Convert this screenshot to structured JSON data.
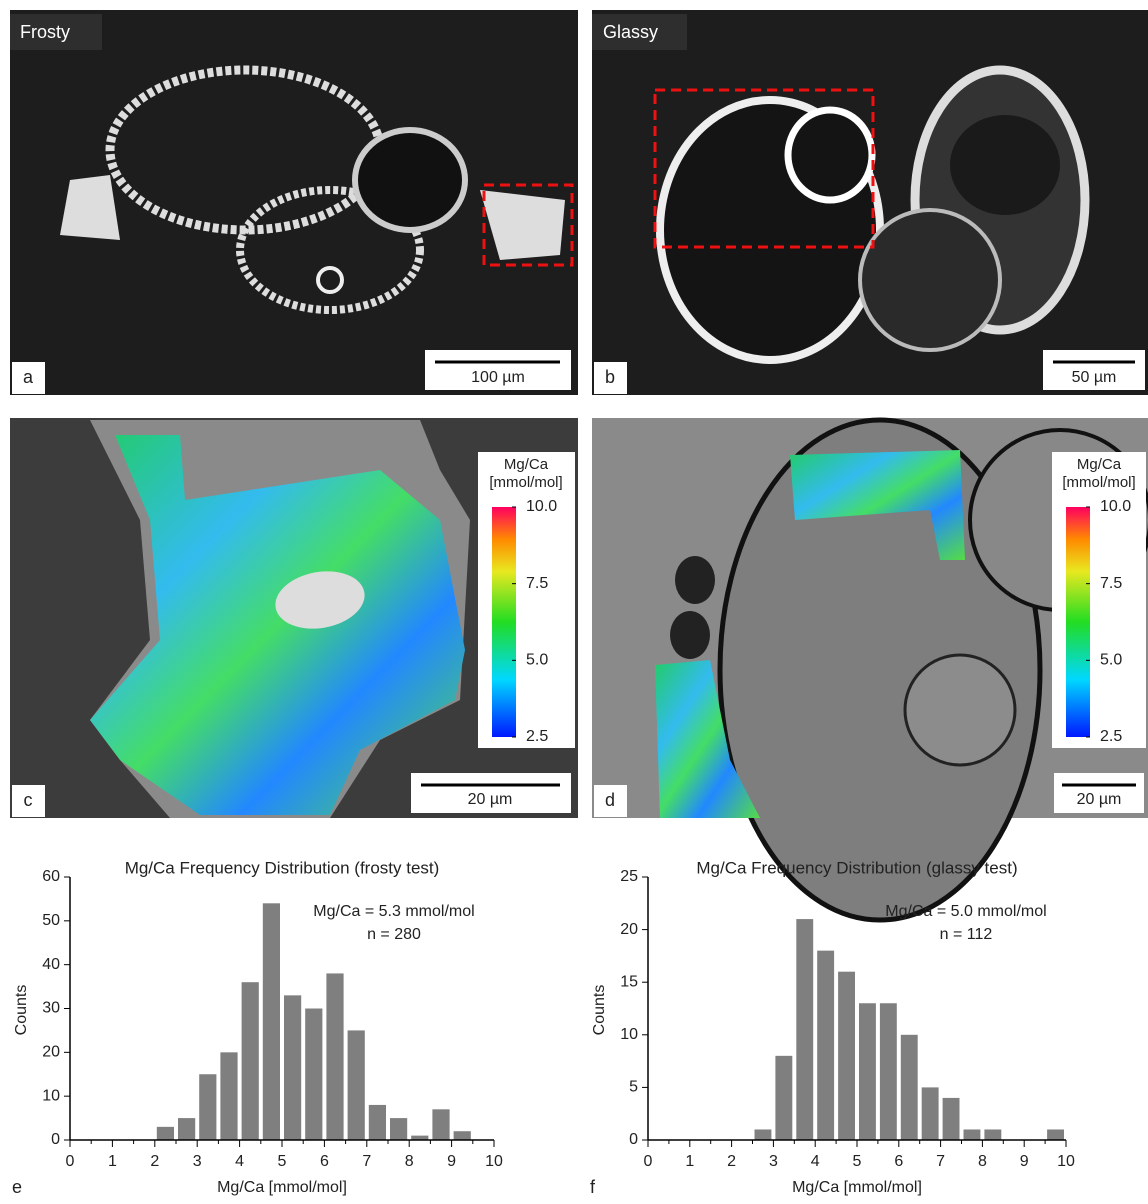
{
  "panels": [
    {
      "label": "a",
      "title": "Frosty",
      "scale_bar": "100 µm"
    },
    {
      "label": "b",
      "title": "Glassy",
      "scale_bar": "50 µm"
    },
    {
      "label": "c",
      "scale_bar": "20 µm",
      "colorbar": {
        "title": "Mg/Ca",
        "unit": "[mmol/mol]",
        "lim": [
          2.5,
          10
        ],
        "ticks": [
          {
            "value": 10,
            "label": "10.0"
          },
          {
            "value": 7.5,
            "label": "7.5"
          },
          {
            "value": 5,
            "label": "5.0"
          },
          {
            "value": 2.5,
            "label": "2.5"
          }
        ]
      }
    },
    {
      "label": "d",
      "scale_bar": "20 µm",
      "colorbar": {
        "title": "Mg/Ca",
        "unit": "[mmol/mol]",
        "lim": [
          2.5,
          10
        ],
        "ticks": [
          {
            "value": 10,
            "label": "10.0"
          },
          {
            "value": 7.5,
            "label": "7.5"
          },
          {
            "value": 5,
            "label": "5.0"
          },
          {
            "value": 2.5,
            "label": "2.5"
          }
        ]
      }
    }
  ],
  "chart_data": [
    {
      "type": "histogram",
      "label": "e",
      "title": "Mg/Ca Frequency Distribution (frosty test)",
      "x_label": "Mg/Ca [mmol/mol]",
      "y_label": "Counts",
      "color": "#7f7f7f",
      "annotations": [
        "Mg/Ca = 5.3 mmol/mol",
        "n = 280"
      ],
      "bins": [
        2.0,
        2.5,
        3.0,
        3.5,
        4.0,
        4.5,
        5.0,
        5.5,
        6.0,
        6.5,
        7.0,
        7.5,
        8.0,
        8.5,
        9.0,
        9.5
      ],
      "counts": [
        3,
        5,
        15,
        20,
        36,
        54,
        33,
        30,
        38,
        25,
        8,
        5,
        1,
        7,
        2
      ],
      "xlim": [
        0,
        10
      ],
      "xticks": [
        0,
        1,
        2,
        3,
        4,
        5,
        6,
        7,
        8,
        9,
        10
      ],
      "xminorticks": [
        0.5,
        1.5,
        2.5,
        3.5,
        4.5,
        5.5,
        6.5,
        7.5,
        8.5,
        9.5
      ],
      "ylim": [
        0,
        60
      ],
      "yticks": [
        0,
        10,
        20,
        30,
        40,
        50,
        60
      ]
    },
    {
      "type": "histogram",
      "label": "f",
      "title": "Mg/Ca Frequency Distribution (glassy test)",
      "x_label": "Mg/Ca [mmol/mol]",
      "y_label": "Counts",
      "color": "#7f7f7f",
      "annotations": [
        "Mg/Ca = 5.0 mmol/mol",
        "n = 112"
      ],
      "bins": [
        2.5,
        3.0,
        3.5,
        4.0,
        4.5,
        5.0,
        5.5,
        6.0,
        6.5,
        7.0,
        7.5,
        8.0,
        8.5,
        9.0,
        9.5,
        10.0
      ],
      "counts": [
        1,
        8,
        21,
        18,
        16,
        13,
        13,
        10,
        5,
        4,
        1,
        1,
        0,
        0,
        1
      ],
      "xlim": [
        0,
        10
      ],
      "xticks": [
        0,
        1,
        2,
        3,
        4,
        5,
        6,
        7,
        8,
        9,
        10
      ],
      "xminorticks": [
        0.5,
        1.5,
        2.5,
        3.5,
        4.5,
        5.5,
        6.5,
        7.5,
        8.5,
        9.5
      ],
      "ylim": [
        0,
        25
      ],
      "yticks": [
        0,
        5,
        10,
        15,
        20,
        25
      ]
    }
  ]
}
